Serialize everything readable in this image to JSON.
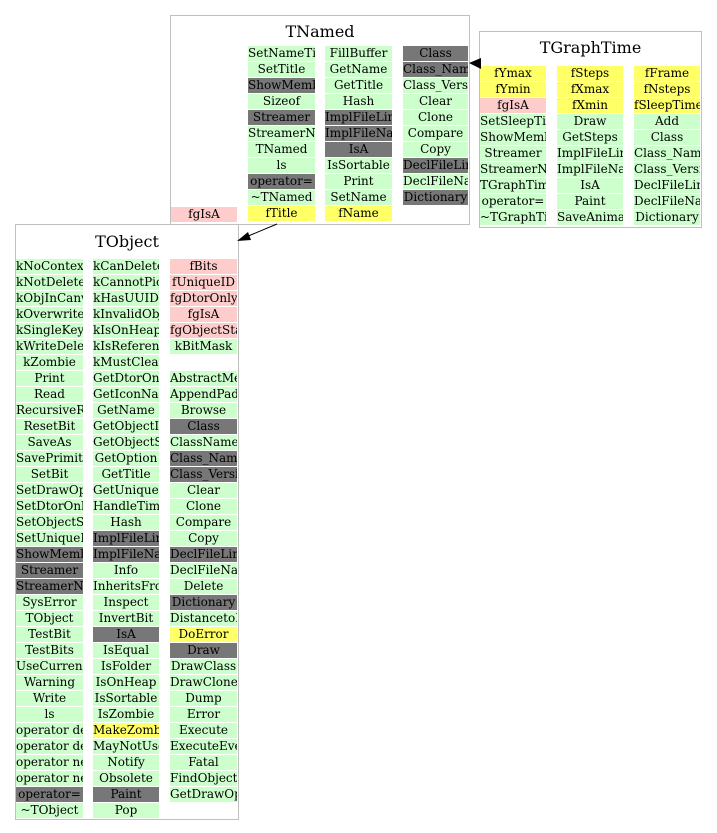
{
  "colors": {
    "public_member": "#ccffcc",
    "inherited_or_virtual": "#777777",
    "data_member": "#ffff66",
    "private_member": "#ffcccc",
    "box_border": "#c0c0c0"
  },
  "classes": [
    {
      "id": "tnamed",
      "title": "TNamed",
      "columns": [
        [
          {
            "t": "SetNameTitle",
            "c": "pub"
          },
          {
            "t": "SetTitle",
            "c": "pub"
          },
          {
            "t": "ShowMembers",
            "c": "dark"
          },
          {
            "t": "Sizeof",
            "c": "pub"
          },
          {
            "t": "Streamer",
            "c": "dark"
          },
          {
            "t": "StreamerNVirtual",
            "c": "pub"
          },
          {
            "t": "TNamed",
            "c": "pub"
          },
          {
            "t": "ls",
            "c": "pub"
          },
          {
            "t": "operator=",
            "c": "dark"
          },
          {
            "t": "~TNamed",
            "c": "pub"
          },
          {
            "t": "fTitle",
            "c": "hi"
          }
        ],
        [
          {
            "t": "FillBuffer",
            "c": "pub"
          },
          {
            "t": "GetName",
            "c": "pub"
          },
          {
            "t": "GetTitle",
            "c": "pub"
          },
          {
            "t": "Hash",
            "c": "pub"
          },
          {
            "t": "ImplFileLine",
            "c": "dark"
          },
          {
            "t": "ImplFileName",
            "c": "dark"
          },
          {
            "t": "IsA",
            "c": "dark"
          },
          {
            "t": "IsSortable",
            "c": "pub"
          },
          {
            "t": "Print",
            "c": "pub"
          },
          {
            "t": "SetName",
            "c": "pub"
          },
          {
            "t": "fName",
            "c": "hi"
          }
        ],
        [
          {
            "t": "Class",
            "c": "dark"
          },
          {
            "t": "Class_Name",
            "c": "dark"
          },
          {
            "t": "Class_Version",
            "c": "pub"
          },
          {
            "t": "Clear",
            "c": "pub"
          },
          {
            "t": "Clone",
            "c": "pub"
          },
          {
            "t": "Compare",
            "c": "pub"
          },
          {
            "t": "Copy",
            "c": "pub"
          },
          {
            "t": "DeclFileLine",
            "c": "dark"
          },
          {
            "t": "DeclFileName",
            "c": "pub"
          },
          {
            "t": "Dictionary",
            "c": "dark"
          }
        ]
      ],
      "extra": [
        {
          "t": "fgIsA",
          "c": "priv"
        }
      ]
    },
    {
      "id": "tgraphtime",
      "title": "TGraphTime",
      "columns": [
        [
          {
            "t": "fYmax",
            "c": "hi"
          },
          {
            "t": "fYmin",
            "c": "hi"
          },
          {
            "t": "fgIsA",
            "c": "priv"
          },
          {
            "t": "SetSleepTime",
            "c": "pub"
          },
          {
            "t": "ShowMembers",
            "c": "pub"
          },
          {
            "t": "Streamer",
            "c": "pub"
          },
          {
            "t": "StreamerNVirtual",
            "c": "pub"
          },
          {
            "t": "TGraphTime",
            "c": "pub"
          },
          {
            "t": "operator=",
            "c": "pub"
          },
          {
            "t": "~TGraphTime",
            "c": "pub"
          }
        ],
        [
          {
            "t": "fSteps",
            "c": "hi"
          },
          {
            "t": "fXmax",
            "c": "hi"
          },
          {
            "t": "fXmin",
            "c": "hi"
          },
          {
            "t": "Draw",
            "c": "pub"
          },
          {
            "t": "GetSteps",
            "c": "pub"
          },
          {
            "t": "ImplFileLine",
            "c": "pub"
          },
          {
            "t": "ImplFileName",
            "c": "pub"
          },
          {
            "t": "IsA",
            "c": "pub"
          },
          {
            "t": "Paint",
            "c": "pub"
          },
          {
            "t": "SaveAnimatedGif",
            "c": "pub"
          }
        ],
        [
          {
            "t": "fFrame",
            "c": "hi"
          },
          {
            "t": "fNsteps",
            "c": "hi"
          },
          {
            "t": "fSleepTime",
            "c": "hi"
          },
          {
            "t": "Add",
            "c": "pub"
          },
          {
            "t": "Class",
            "c": "pub"
          },
          {
            "t": "Class_Name",
            "c": "pub"
          },
          {
            "t": "Class_Version",
            "c": "pub"
          },
          {
            "t": "DeclFileLine",
            "c": "pub"
          },
          {
            "t": "DeclFileName",
            "c": "pub"
          },
          {
            "t": "Dictionary",
            "c": "pub"
          }
        ]
      ],
      "extra": []
    },
    {
      "id": "tobject",
      "title": "TObject",
      "columns": [
        [
          {
            "t": "kNoContextMenu",
            "c": "pub"
          },
          {
            "t": "kNotDeleted",
            "c": "pub"
          },
          {
            "t": "kObjInCanvas",
            "c": "pub"
          },
          {
            "t": "kOverwrite",
            "c": "pub"
          },
          {
            "t": "kSingleKey",
            "c": "pub"
          },
          {
            "t": "kWriteDelete",
            "c": "pub"
          },
          {
            "t": "kZombie",
            "c": "pub"
          },
          {
            "t": "Print",
            "c": "pub"
          },
          {
            "t": "Read",
            "c": "pub"
          },
          {
            "t": "RecursiveRemove",
            "c": "pub"
          },
          {
            "t": "ResetBit",
            "c": "pub"
          },
          {
            "t": "SaveAs",
            "c": "pub"
          },
          {
            "t": "SavePrimitive",
            "c": "pub"
          },
          {
            "t": "SetBit",
            "c": "pub"
          },
          {
            "t": "SetDrawOption",
            "c": "pub"
          },
          {
            "t": "SetDtorOnly",
            "c": "pub"
          },
          {
            "t": "SetObjectStat",
            "c": "pub"
          },
          {
            "t": "SetUniqueID",
            "c": "pub"
          },
          {
            "t": "ShowMembers",
            "c": "dark"
          },
          {
            "t": "Streamer",
            "c": "dark"
          },
          {
            "t": "StreamerNVirtual",
            "c": "dark"
          },
          {
            "t": "SysError",
            "c": "pub"
          },
          {
            "t": "TObject",
            "c": "pub"
          },
          {
            "t": "TestBit",
            "c": "pub"
          },
          {
            "t": "TestBits",
            "c": "pub"
          },
          {
            "t": "UseCurrentStyle",
            "c": "pub"
          },
          {
            "t": "Warning",
            "c": "pub"
          },
          {
            "t": "Write",
            "c": "pub"
          },
          {
            "t": "ls",
            "c": "pub"
          },
          {
            "t": "operator delete",
            "c": "pub"
          },
          {
            "t": "operator delete[]",
            "c": "pub"
          },
          {
            "t": "operator new",
            "c": "pub"
          },
          {
            "t": "operator new[]",
            "c": "pub"
          },
          {
            "t": "operator=",
            "c": "dark"
          },
          {
            "t": "~TObject",
            "c": "pub"
          }
        ],
        [
          {
            "t": "kCanDelete",
            "c": "pub"
          },
          {
            "t": "kCannotPick",
            "c": "pub"
          },
          {
            "t": "kHasUUID",
            "c": "pub"
          },
          {
            "t": "kInvalidObject",
            "c": "pub"
          },
          {
            "t": "kIsOnHeap",
            "c": "pub"
          },
          {
            "t": "kIsReferenced",
            "c": "pub"
          },
          {
            "t": "kMustCleanup",
            "c": "pub"
          },
          {
            "t": "GetDtorOnly",
            "c": "pub"
          },
          {
            "t": "GetIconName",
            "c": "pub"
          },
          {
            "t": "GetName",
            "c": "pub"
          },
          {
            "t": "GetObjectInfo",
            "c": "pub"
          },
          {
            "t": "GetObjectStat",
            "c": "pub"
          },
          {
            "t": "GetOption",
            "c": "pub"
          },
          {
            "t": "GetTitle",
            "c": "pub"
          },
          {
            "t": "GetUniqueID",
            "c": "pub"
          },
          {
            "t": "HandleTimer",
            "c": "pub"
          },
          {
            "t": "Hash",
            "c": "pub"
          },
          {
            "t": "ImplFileLine",
            "c": "dark"
          },
          {
            "t": "ImplFileName",
            "c": "dark"
          },
          {
            "t": "Info",
            "c": "pub"
          },
          {
            "t": "InheritsFrom",
            "c": "pub"
          },
          {
            "t": "Inspect",
            "c": "pub"
          },
          {
            "t": "InvertBit",
            "c": "pub"
          },
          {
            "t": "IsA",
            "c": "dark"
          },
          {
            "t": "IsEqual",
            "c": "pub"
          },
          {
            "t": "IsFolder",
            "c": "pub"
          },
          {
            "t": "IsOnHeap",
            "c": "pub"
          },
          {
            "t": "IsSortable",
            "c": "pub"
          },
          {
            "t": "IsZombie",
            "c": "pub"
          },
          {
            "t": "MakeZombie",
            "c": "hi"
          },
          {
            "t": "MayNotUse",
            "c": "pub"
          },
          {
            "t": "Notify",
            "c": "pub"
          },
          {
            "t": "Obsolete",
            "c": "pub"
          },
          {
            "t": "Paint",
            "c": "dark"
          },
          {
            "t": "Pop",
            "c": "pub"
          }
        ],
        [
          {
            "t": "fBits",
            "c": "priv"
          },
          {
            "t": "fUniqueID",
            "c": "priv"
          },
          {
            "t": "fgDtorOnly",
            "c": "priv"
          },
          {
            "t": "fgIsA",
            "c": "priv"
          },
          {
            "t": "fgObjectStat",
            "c": "priv"
          },
          {
            "t": "kBitMask",
            "c": "pub"
          },
          {
            "t": "",
            "c": "none"
          },
          {
            "t": "AbstractMethod",
            "c": "pub"
          },
          {
            "t": "AppendPad",
            "c": "pub"
          },
          {
            "t": "Browse",
            "c": "pub"
          },
          {
            "t": "Class",
            "c": "dark"
          },
          {
            "t": "ClassName",
            "c": "pub"
          },
          {
            "t": "Class_Name",
            "c": "dark"
          },
          {
            "t": "Class_Version",
            "c": "dark"
          },
          {
            "t": "Clear",
            "c": "pub"
          },
          {
            "t": "Clone",
            "c": "pub"
          },
          {
            "t": "Compare",
            "c": "pub"
          },
          {
            "t": "Copy",
            "c": "pub"
          },
          {
            "t": "DeclFileLine",
            "c": "dark"
          },
          {
            "t": "DeclFileName",
            "c": "pub"
          },
          {
            "t": "Delete",
            "c": "pub"
          },
          {
            "t": "Dictionary",
            "c": "dark"
          },
          {
            "t": "DistancetoPrimitive",
            "c": "pub"
          },
          {
            "t": "DoError",
            "c": "hi"
          },
          {
            "t": "Draw",
            "c": "dark"
          },
          {
            "t": "DrawClass",
            "c": "pub"
          },
          {
            "t": "DrawClone",
            "c": "pub"
          },
          {
            "t": "Dump",
            "c": "pub"
          },
          {
            "t": "Error",
            "c": "pub"
          },
          {
            "t": "Execute",
            "c": "pub"
          },
          {
            "t": "ExecuteEvent",
            "c": "pub"
          },
          {
            "t": "Fatal",
            "c": "pub"
          },
          {
            "t": "FindObject",
            "c": "pub"
          },
          {
            "t": "GetDrawOption",
            "c": "pub"
          }
        ]
      ],
      "extra": []
    }
  ]
}
